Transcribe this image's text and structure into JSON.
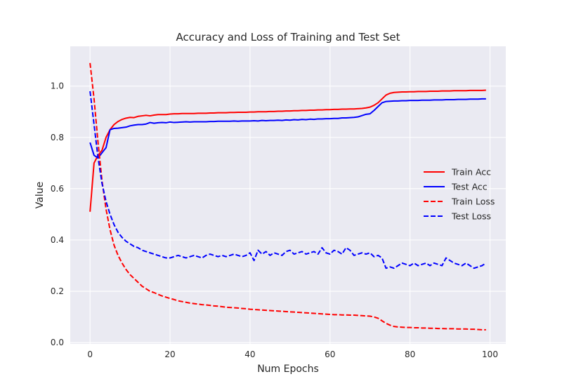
{
  "chart_data": {
    "type": "line",
    "title": "Accuracy and Loss of Training and Test Set",
    "xlabel": "Num Epochs",
    "ylabel": "Value",
    "xlim": [
      -4.95,
      103.95
    ],
    "ylim": [
      -0.005,
      1.155
    ],
    "xticks": [
      0,
      20,
      40,
      60,
      80,
      100
    ],
    "yticks": [
      0.0,
      0.2,
      0.4,
      0.6,
      0.8,
      1.0
    ],
    "xtick_labels": [
      "0",
      "20",
      "40",
      "60",
      "80",
      "100"
    ],
    "ytick_labels": [
      "0.0",
      "0.2",
      "0.4",
      "0.6",
      "0.8",
      "1.0"
    ],
    "grid": true,
    "legend_position": "center-right",
    "background_color": "#EAEAF2",
    "series": [
      {
        "name": "Train Acc",
        "color": "#FF0000",
        "linestyle": "solid",
        "values": [
          0.51,
          0.7,
          0.73,
          0.75,
          0.8,
          0.83,
          0.85,
          0.862,
          0.87,
          0.875,
          0.878,
          0.877,
          0.882,
          0.884,
          0.886,
          0.884,
          0.887,
          0.889,
          0.889,
          0.889,
          0.891,
          0.892,
          0.892,
          0.893,
          0.893,
          0.893,
          0.893,
          0.894,
          0.894,
          0.894,
          0.895,
          0.895,
          0.896,
          0.896,
          0.896,
          0.897,
          0.897,
          0.898,
          0.898,
          0.898,
          0.899,
          0.899,
          0.9,
          0.9,
          0.9,
          0.901,
          0.901,
          0.902,
          0.902,
          0.903,
          0.903,
          0.904,
          0.904,
          0.905,
          0.905,
          0.906,
          0.906,
          0.907,
          0.907,
          0.908,
          0.908,
          0.909,
          0.909,
          0.91,
          0.91,
          0.911,
          0.911,
          0.912,
          0.913,
          0.915,
          0.918,
          0.925,
          0.935,
          0.95,
          0.965,
          0.972,
          0.975,
          0.976,
          0.977,
          0.977,
          0.978,
          0.978,
          0.979,
          0.979,
          0.979,
          0.98,
          0.98,
          0.98,
          0.981,
          0.981,
          0.981,
          0.982,
          0.982,
          0.982,
          0.982,
          0.983,
          0.983,
          0.983,
          0.983,
          0.984
        ]
      },
      {
        "name": "Test Acc",
        "color": "#0000FF",
        "linestyle": "solid",
        "values": [
          0.78,
          0.73,
          0.72,
          0.74,
          0.76,
          0.83,
          0.835,
          0.836,
          0.838,
          0.84,
          0.845,
          0.848,
          0.85,
          0.85,
          0.852,
          0.858,
          0.855,
          0.857,
          0.858,
          0.857,
          0.86,
          0.858,
          0.859,
          0.86,
          0.861,
          0.86,
          0.861,
          0.861,
          0.861,
          0.861,
          0.862,
          0.862,
          0.863,
          0.863,
          0.863,
          0.863,
          0.864,
          0.863,
          0.864,
          0.864,
          0.864,
          0.865,
          0.864,
          0.866,
          0.865,
          0.866,
          0.866,
          0.867,
          0.866,
          0.868,
          0.867,
          0.869,
          0.868,
          0.87,
          0.869,
          0.871,
          0.87,
          0.872,
          0.872,
          0.873,
          0.873,
          0.874,
          0.874,
          0.876,
          0.876,
          0.877,
          0.878,
          0.88,
          0.885,
          0.89,
          0.892,
          0.905,
          0.92,
          0.935,
          0.94,
          0.941,
          0.942,
          0.942,
          0.943,
          0.943,
          0.944,
          0.944,
          0.944,
          0.945,
          0.945,
          0.945,
          0.946,
          0.946,
          0.946,
          0.947,
          0.947,
          0.947,
          0.948,
          0.948,
          0.948,
          0.949,
          0.949,
          0.949,
          0.95,
          0.95
        ]
      },
      {
        "name": "Train Loss",
        "color": "#FF0000",
        "linestyle": "dashed",
        "values": [
          1.09,
          0.95,
          0.78,
          0.63,
          0.52,
          0.44,
          0.38,
          0.34,
          0.31,
          0.285,
          0.265,
          0.25,
          0.235,
          0.22,
          0.21,
          0.2,
          0.195,
          0.188,
          0.182,
          0.177,
          0.172,
          0.168,
          0.163,
          0.16,
          0.157,
          0.154,
          0.152,
          0.15,
          0.148,
          0.147,
          0.145,
          0.143,
          0.142,
          0.14,
          0.138,
          0.137,
          0.136,
          0.135,
          0.133,
          0.132,
          0.13,
          0.129,
          0.128,
          0.127,
          0.126,
          0.125,
          0.124,
          0.123,
          0.122,
          0.121,
          0.12,
          0.119,
          0.118,
          0.117,
          0.116,
          0.115,
          0.114,
          0.113,
          0.112,
          0.111,
          0.11,
          0.109,
          0.109,
          0.108,
          0.108,
          0.107,
          0.107,
          0.106,
          0.105,
          0.104,
          0.103,
          0.1,
          0.095,
          0.085,
          0.075,
          0.068,
          0.063,
          0.061,
          0.06,
          0.059,
          0.059,
          0.058,
          0.058,
          0.057,
          0.057,
          0.056,
          0.056,
          0.055,
          0.055,
          0.054,
          0.054,
          0.054,
          0.053,
          0.053,
          0.053,
          0.052,
          0.052,
          0.051,
          0.05,
          0.05
        ]
      },
      {
        "name": "Test Loss",
        "color": "#0000FF",
        "linestyle": "dashed",
        "values": [
          0.98,
          0.85,
          0.72,
          0.62,
          0.55,
          0.5,
          0.46,
          0.43,
          0.41,
          0.395,
          0.385,
          0.375,
          0.37,
          0.36,
          0.355,
          0.35,
          0.345,
          0.34,
          0.335,
          0.33,
          0.33,
          0.335,
          0.34,
          0.335,
          0.33,
          0.335,
          0.34,
          0.335,
          0.33,
          0.34,
          0.345,
          0.34,
          0.335,
          0.34,
          0.335,
          0.34,
          0.345,
          0.34,
          0.335,
          0.34,
          0.35,
          0.32,
          0.36,
          0.345,
          0.355,
          0.34,
          0.35,
          0.345,
          0.34,
          0.355,
          0.36,
          0.345,
          0.35,
          0.355,
          0.345,
          0.35,
          0.355,
          0.345,
          0.37,
          0.35,
          0.345,
          0.36,
          0.355,
          0.345,
          0.37,
          0.36,
          0.34,
          0.345,
          0.35,
          0.345,
          0.35,
          0.335,
          0.34,
          0.33,
          0.29,
          0.295,
          0.29,
          0.3,
          0.31,
          0.305,
          0.3,
          0.31,
          0.3,
          0.305,
          0.31,
          0.3,
          0.31,
          0.305,
          0.3,
          0.33,
          0.32,
          0.31,
          0.305,
          0.3,
          0.31,
          0.3,
          0.29,
          0.295,
          0.3,
          0.31
        ]
      }
    ]
  }
}
